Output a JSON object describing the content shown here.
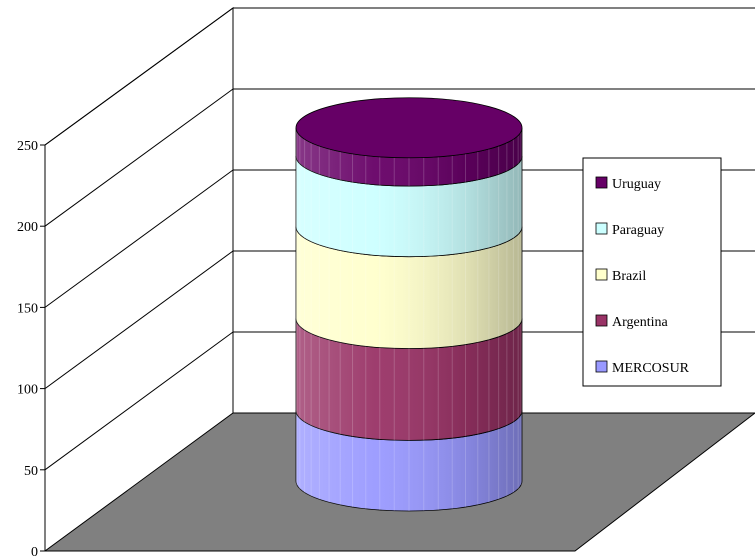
{
  "chart_data": {
    "type": "bar",
    "subtype": "3d-stacked-cylinder",
    "title": "",
    "xlabel": "",
    "ylabel": "",
    "ylim": [
      0,
      250
    ],
    "yticks": [
      0,
      50,
      100,
      150,
      200,
      250
    ],
    "grid": true,
    "legend_position": "right",
    "floor_color": "#808080",
    "categories": [
      ""
    ],
    "series": [
      {
        "name": "MERCOSUR",
        "values": [
          50
        ],
        "color": "#9999ff"
      },
      {
        "name": "Argentina",
        "values": [
          65
        ],
        "color": "#993366"
      },
      {
        "name": "Brazil",
        "values": [
          65
        ],
        "color": "#ffffcc"
      },
      {
        "name": "Paraguay",
        "values": [
          50
        ],
        "color": "#ccffff"
      },
      {
        "name": "Uruguay",
        "values": [
          20
        ],
        "color": "#660066"
      }
    ]
  }
}
